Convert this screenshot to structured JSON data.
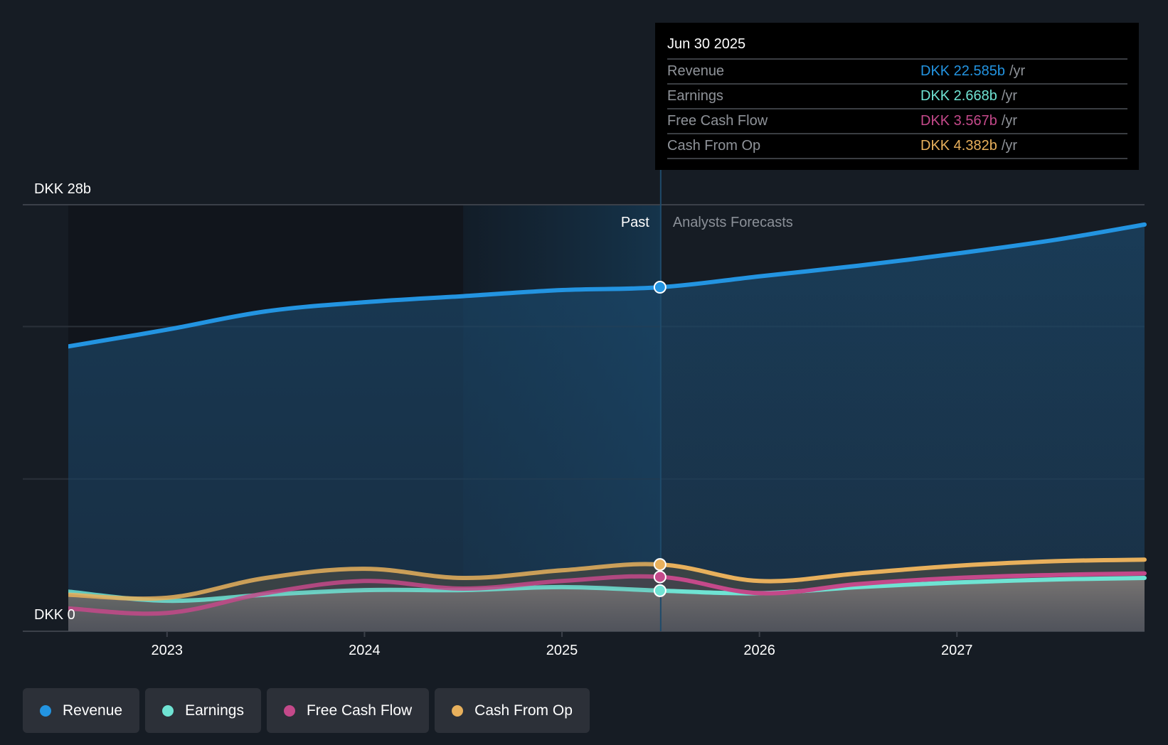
{
  "tooltip": {
    "date": "Jun 30 2025",
    "unit": "/yr",
    "rows": [
      {
        "label": "Revenue",
        "value": "DKK 22.585b",
        "color": "#2394e1"
      },
      {
        "label": "Earnings",
        "value": "DKK 2.668b",
        "color": "#6fe3d3"
      },
      {
        "label": "Free Cash Flow",
        "value": "DKK 3.567b",
        "color": "#c4498a"
      },
      {
        "label": "Cash From Op",
        "value": "DKK 4.382b",
        "color": "#e8b05c"
      }
    ]
  },
  "legend": [
    {
      "label": "Revenue",
      "color": "#2394e1"
    },
    {
      "label": "Earnings",
      "color": "#6fe3d3"
    },
    {
      "label": "Free Cash Flow",
      "color": "#c4498a"
    },
    {
      "label": "Cash From Op",
      "color": "#e8b05c"
    }
  ],
  "chart_data": {
    "type": "area",
    "title": "",
    "xlabel": "",
    "ylabel": "",
    "y_unit": "DKK b",
    "ylim": [
      0,
      28
    ],
    "y_axis_labels": {
      "top": "DKK 28b",
      "bottom": "DKK 0"
    },
    "gridlines": [
      0,
      10,
      20,
      28
    ],
    "grid": true,
    "xlim": [
      2022.5,
      2027.95
    ],
    "x_ticks": [
      2023,
      2024,
      2025,
      2026,
      2027
    ],
    "x_tick_labels": [
      "2023",
      "2024",
      "2025",
      "2026",
      "2027"
    ],
    "past_label": "Past",
    "forecast_label": "Analysts Forecasts",
    "divider_x": 2025.5,
    "highlight_start_x": 2024.5,
    "highlight_date": "Jun 30 2025",
    "legend_position": "bottom-left",
    "series": [
      {
        "name": "Revenue",
        "color": "#2394e1",
        "x": [
          2022.5,
          2023.0,
          2023.5,
          2024.0,
          2024.5,
          2025.0,
          2025.5,
          2026.0,
          2026.5,
          2027.0,
          2027.5,
          2027.95
        ],
        "values": [
          18.7,
          19.8,
          21.0,
          21.6,
          22.0,
          22.4,
          22.585,
          23.3,
          24.0,
          24.8,
          25.7,
          26.7
        ]
      },
      {
        "name": "Earnings",
        "color": "#6fe3d3",
        "x": [
          2022.5,
          2023.0,
          2023.5,
          2024.0,
          2024.5,
          2025.0,
          2025.5,
          2026.0,
          2026.5,
          2027.0,
          2027.5,
          2027.95
        ],
        "values": [
          2.6,
          2.0,
          2.4,
          2.7,
          2.7,
          2.9,
          2.668,
          2.5,
          2.9,
          3.2,
          3.4,
          3.5
        ]
      },
      {
        "name": "Free Cash Flow",
        "color": "#c4498a",
        "x": [
          2022.5,
          2023.0,
          2023.5,
          2024.0,
          2024.5,
          2025.0,
          2025.5,
          2026.0,
          2026.5,
          2027.0,
          2027.5,
          2027.95
        ],
        "values": [
          1.5,
          1.2,
          2.5,
          3.3,
          2.8,
          3.3,
          3.567,
          2.5,
          3.1,
          3.5,
          3.7,
          3.8
        ]
      },
      {
        "name": "Cash From Op",
        "color": "#e8b05c",
        "x": [
          2022.5,
          2023.0,
          2023.5,
          2024.0,
          2024.5,
          2025.0,
          2025.5,
          2026.0,
          2026.5,
          2027.0,
          2027.5,
          2027.95
        ],
        "values": [
          2.4,
          2.2,
          3.5,
          4.1,
          3.5,
          4.0,
          4.382,
          3.3,
          3.8,
          4.3,
          4.6,
          4.7
        ]
      }
    ]
  }
}
